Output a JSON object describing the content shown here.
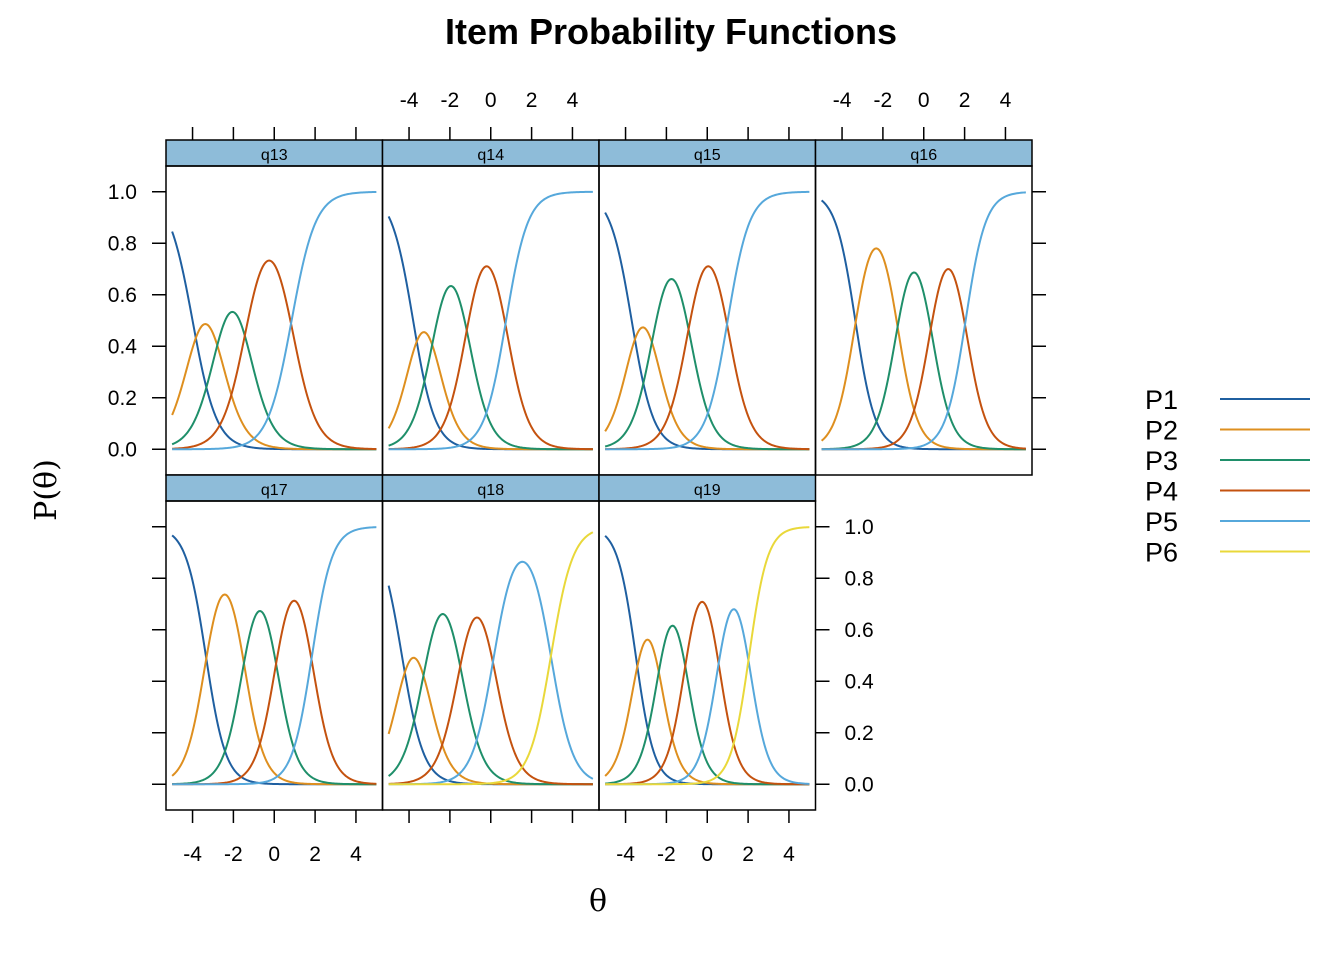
{
  "chart_data": {
    "type": "line",
    "title": "Item Probability Functions",
    "xlabel": "θ",
    "ylabel": "P(θ)",
    "xlim": [
      -5.3,
      5.3
    ],
    "ylim": [
      -0.1,
      1.1
    ],
    "x_ticks": [
      -4,
      -2,
      0,
      2,
      4
    ],
    "x_tick_labels": [
      "-4",
      "-2",
      "0",
      "2",
      "4"
    ],
    "y_ticks": [
      0.0,
      0.2,
      0.4,
      0.6,
      0.8,
      1.0
    ],
    "y_tick_labels": [
      "0.0",
      "0.2",
      "0.4",
      "0.6",
      "0.8",
      "1.0"
    ],
    "grid": false,
    "legend_position": "right",
    "legend": [
      {
        "name": "P1",
        "color": "#1f5fa0"
      },
      {
        "name": "P2",
        "color": "#de8f1f"
      },
      {
        "name": "P3",
        "color": "#1f8f6a"
      },
      {
        "name": "P4",
        "color": "#c4520f"
      },
      {
        "name": "P5",
        "color": "#56a8db"
      },
      {
        "name": "P6",
        "color": "#e9d83a"
      }
    ],
    "panels": [
      {
        "name": "q13",
        "discrimination": 1.0,
        "thresholds": [
          -4.0,
          -2.75,
          -1.35,
          0.85
        ]
      },
      {
        "name": "q14",
        "discrimination": 1.1,
        "thresholds": [
          -3.8,
          -2.75,
          -1.15,
          0.75
        ]
      },
      {
        "name": "q15",
        "discrimination": 1.1,
        "thresholds": [
          -3.7,
          -2.6,
          -0.9,
          1.0
        ]
      },
      {
        "name": "q16",
        "discrimination": 1.2,
        "thresholds": [
          -3.35,
          -1.3,
          0.35,
          2.05
        ]
      },
      {
        "name": "q17",
        "discrimination": 1.2,
        "thresholds": [
          -3.35,
          -1.5,
          0.1,
          1.85
        ]
      },
      {
        "name": "q18",
        "discrimination": 1.1,
        "thresholds": [
          -4.35,
          -3.2,
          -1.5,
          0.15,
          2.95
        ]
      },
      {
        "name": "q19",
        "discrimination": 1.3,
        "thresholds": [
          -3.5,
          -2.35,
          -1.05,
          0.55,
          2.05
        ]
      }
    ]
  }
}
